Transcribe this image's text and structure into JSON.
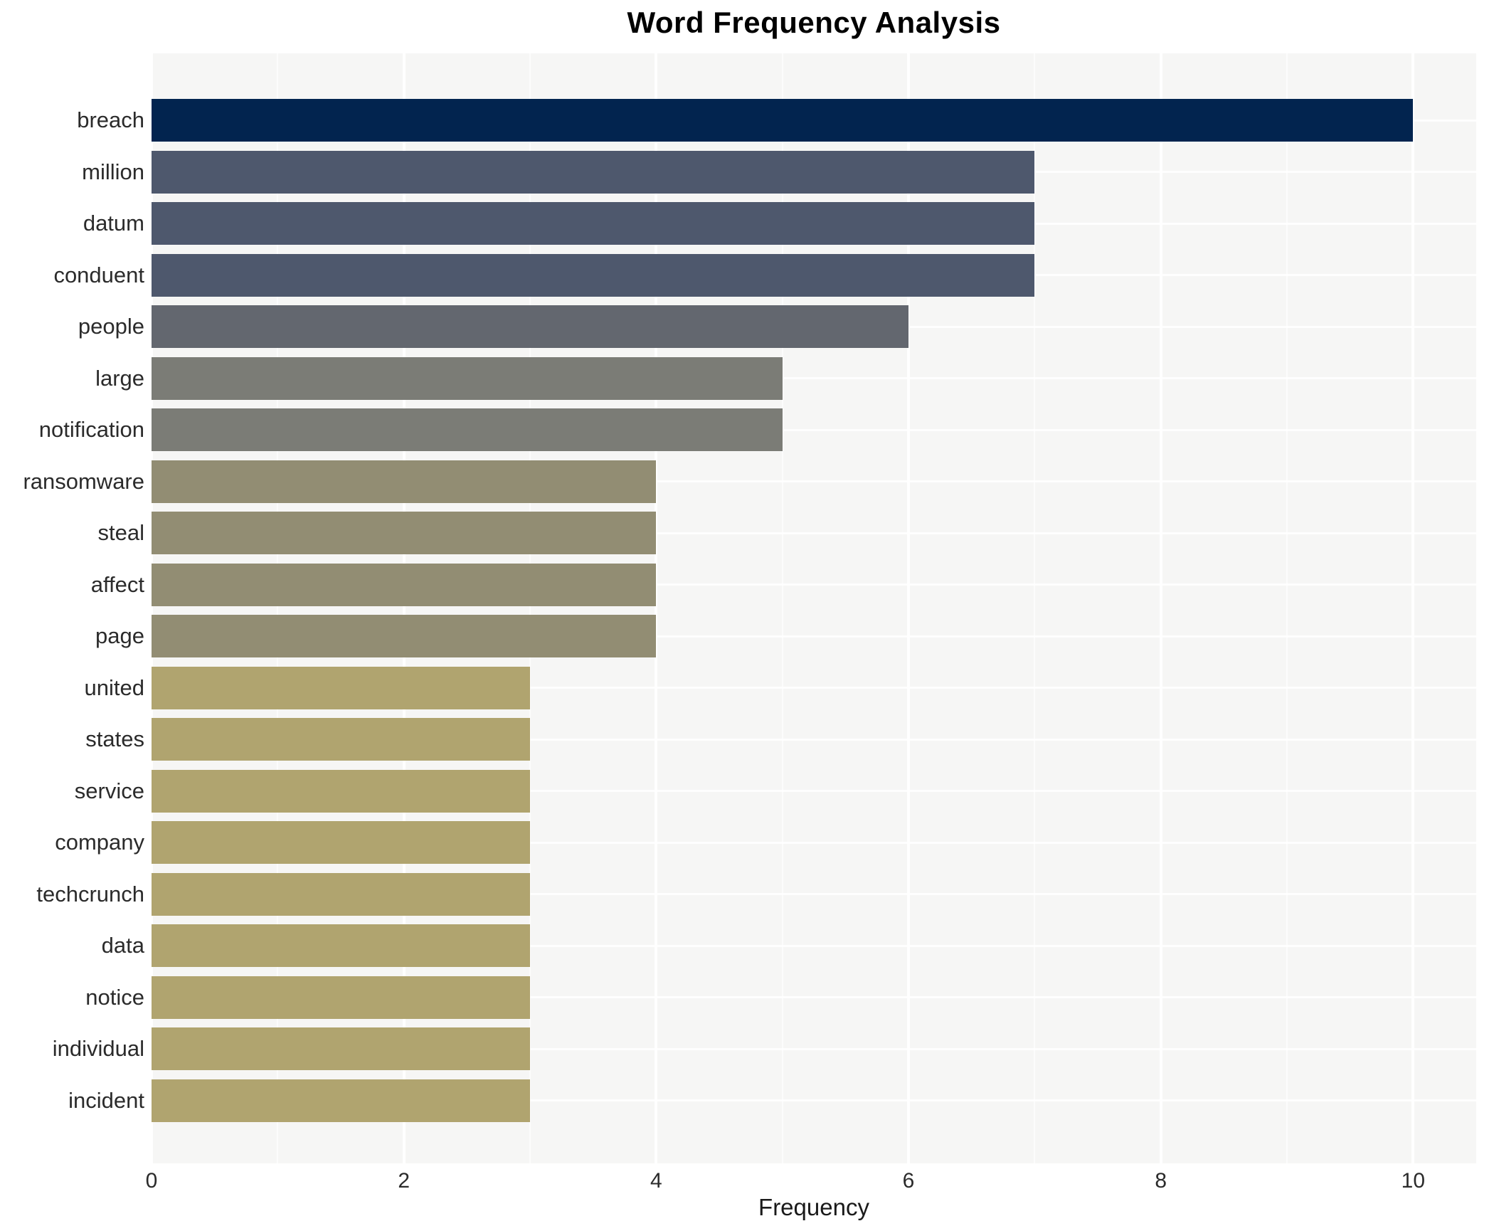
{
  "chart_data": {
    "type": "bar",
    "orientation": "horizontal",
    "title": "Word Frequency Analysis",
    "xlabel": "Frequency",
    "ylabel": "",
    "categories": [
      "breach",
      "million",
      "datum",
      "conduent",
      "people",
      "large",
      "notification",
      "ransomware",
      "steal",
      "affect",
      "page",
      "united",
      "states",
      "service",
      "company",
      "techcrunch",
      "data",
      "notice",
      "individual",
      "incident"
    ],
    "values": [
      10,
      7,
      7,
      7,
      6,
      5,
      5,
      4,
      4,
      4,
      4,
      3,
      3,
      3,
      3,
      3,
      3,
      3,
      3,
      3
    ],
    "bar_colors": [
      "#02244f",
      "#4e586d",
      "#4e586d",
      "#4e586d",
      "#63676f",
      "#7b7c76",
      "#7b7c76",
      "#928d73",
      "#928d73",
      "#928d73",
      "#928d73",
      "#b0a46f",
      "#b0a46f",
      "#b0a46f",
      "#b0a46f",
      "#b0a46f",
      "#b0a46f",
      "#b0a46f",
      "#b0a46f",
      "#b0a46f"
    ],
    "x_ticks_major": [
      0,
      2,
      4,
      6,
      8,
      10
    ],
    "x_ticks_minor": [
      1,
      3,
      5,
      7,
      9
    ],
    "xlim": [
      0,
      10.5
    ],
    "grid": "white major and minor vertical lines, white horizontal line per category",
    "legend": "none",
    "panel_bg": "#f6f6f5",
    "page_bg": "#ffffff",
    "title_color": "#000000",
    "tick_label_color": "#2b2b2b"
  }
}
